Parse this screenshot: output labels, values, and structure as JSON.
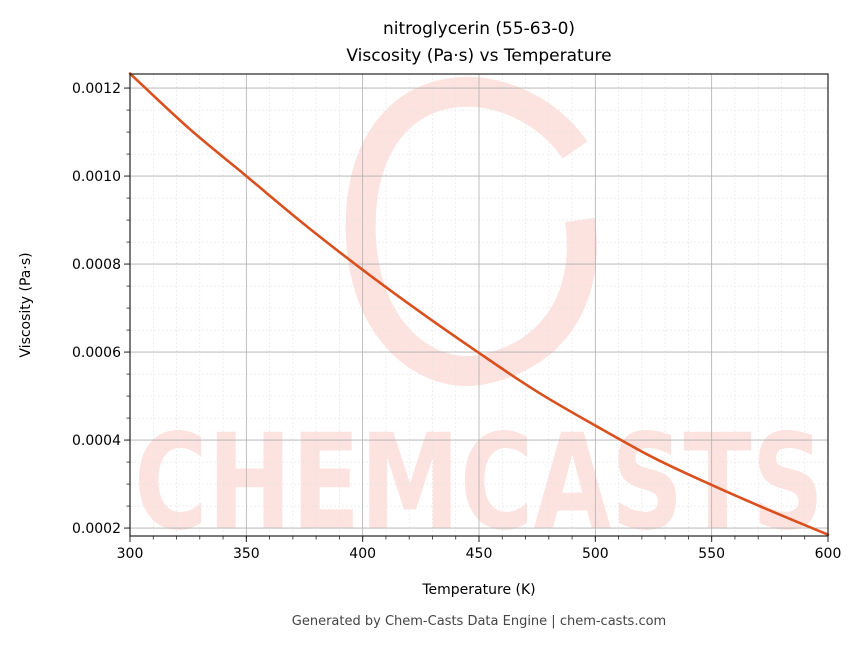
{
  "chart_data": {
    "type": "line",
    "title": "nitroglycerin (55-63-0)",
    "subtitle": "Viscosity (Pa·s) vs Temperature",
    "xlabel": "Temperature (K)",
    "ylabel": "Viscosity (Pa·s)",
    "xlim": [
      300,
      600
    ],
    "ylim": [
      0.000182,
      0.001232
    ],
    "x_ticks": [
      300,
      350,
      400,
      450,
      500,
      550,
      600
    ],
    "x_tick_labels": [
      "300",
      "350",
      "400",
      "450",
      "500",
      "550",
      "600"
    ],
    "y_ticks": [
      0.0002,
      0.0004,
      0.0006,
      0.0008,
      0.001,
      0.0012
    ],
    "y_tick_labels": [
      "0.0002",
      "0.0004",
      "0.0006",
      "0.0008",
      "0.0010",
      "0.0012"
    ],
    "grid": true,
    "minor_grid": true,
    "series": [
      {
        "color": "#d9501e",
        "x": [
          300,
          325,
          350,
          375,
          400,
          425,
          450,
          475,
          500,
          525,
          550,
          575,
          600
        ],
        "y": [
          0.001233,
          0.00111,
          0.001,
          0.00089,
          0.000787,
          0.00069,
          0.000598,
          0.00051,
          0.000433,
          0.00036,
          0.000298,
          0.00024,
          0.000185
        ]
      }
    ]
  },
  "watermark": "CHEMCASTS",
  "footer": "Generated by Chem-Casts Data Engine | chem-casts.com"
}
